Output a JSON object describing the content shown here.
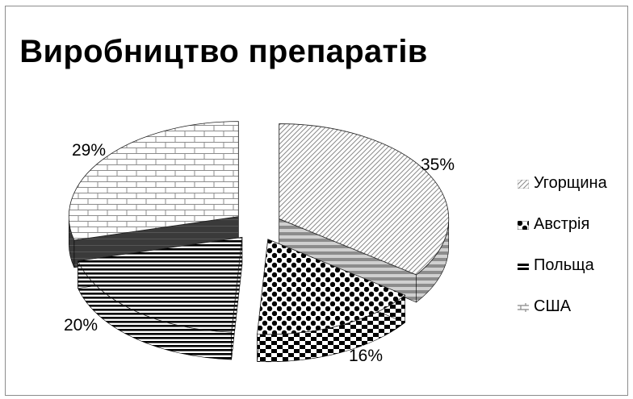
{
  "chart_data": {
    "type": "pie",
    "variant": "3d-exploded",
    "title": "Виробництво препаратів",
    "categories": [
      "Угорщина",
      "Австрія",
      "Польща",
      "США"
    ],
    "values": [
      35,
      16,
      20,
      29
    ],
    "data_labels": [
      "35%",
      "16%",
      "20%",
      "29%"
    ],
    "legend_position": "right",
    "patterns": [
      "diagonal-dots",
      "checker",
      "horizontal-stripes",
      "brick"
    ]
  }
}
